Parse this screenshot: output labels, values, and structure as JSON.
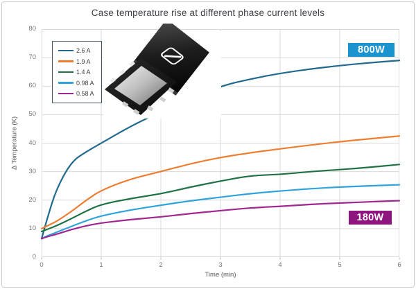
{
  "chart_data": {
    "type": "line",
    "title": "Case temperature rise at different phase current levels",
    "xlabel": "Time (min)",
    "ylabel": "Δ Temperature (K)",
    "xlim": [
      0,
      6
    ],
    "ylim": [
      0,
      80
    ],
    "x_ticks": [
      0,
      1,
      2,
      3,
      4,
      5,
      6
    ],
    "y_ticks": [
      0,
      10,
      20,
      30,
      40,
      50,
      60,
      70,
      80
    ],
    "grid": true,
    "legend_position": "top-left",
    "x": [
      0,
      0.1,
      0.25,
      0.5,
      0.75,
      1,
      1.5,
      2,
      2.5,
      3,
      3.5,
      4,
      4.5,
      5,
      5.5,
      6
    ],
    "series": [
      {
        "name": "2.6 A",
        "color": "#1F6A8D",
        "values": [
          6.5,
          14,
          24,
          33.5,
          37,
          40,
          46,
          51,
          55.5,
          60,
          62.5,
          64.5,
          66,
          67.2,
          68.2,
          69
        ]
      },
      {
        "name": "1.9 A",
        "color": "#ED7D31",
        "values": [
          10,
          11,
          12.5,
          16,
          20,
          23.5,
          27.5,
          30,
          32.8,
          35,
          36.6,
          38,
          39.3,
          40.5,
          41.5,
          42.5
        ]
      },
      {
        "name": "1.4 A",
        "color": "#1E7145",
        "values": [
          9,
          9.8,
          11,
          13.5,
          16.2,
          18.5,
          20.6,
          22.2,
          24.6,
          26.7,
          28.6,
          29,
          30,
          30.7,
          31.5,
          32.5
        ]
      },
      {
        "name": "0.98 A",
        "color": "#2EA3DB",
        "values": [
          6.5,
          7.5,
          8.7,
          10.8,
          12.8,
          14.5,
          16.6,
          18.2,
          19.8,
          21,
          22.3,
          23.2,
          24,
          24.6,
          25,
          25.4
        ]
      },
      {
        "name": "0.58 A",
        "color": "#A0278F",
        "values": [
          6.5,
          7.2,
          8,
          9.7,
          11,
          12,
          13.2,
          14.1,
          15.3,
          16.3,
          17.3,
          17.8,
          18.5,
          19,
          19.4,
          19.8
        ]
      }
    ],
    "annotations": [
      {
        "text": "800W",
        "bg": "#1B93CE",
        "fg": "#FFFFFF"
      },
      {
        "text": "180W",
        "bg": "#8E157E",
        "fg": "#FFFFFF"
      }
    ]
  },
  "chip_image": {
    "logo_text": "ST"
  },
  "colors": {
    "grid": "#D9D9D9",
    "tick_mark": "#BFBFBF",
    "axis_text": "#595959",
    "tick_text": "#75757D",
    "title_text": "#3F4045",
    "legend_border": "#44546A",
    "frame_border": "#C9CED3"
  }
}
